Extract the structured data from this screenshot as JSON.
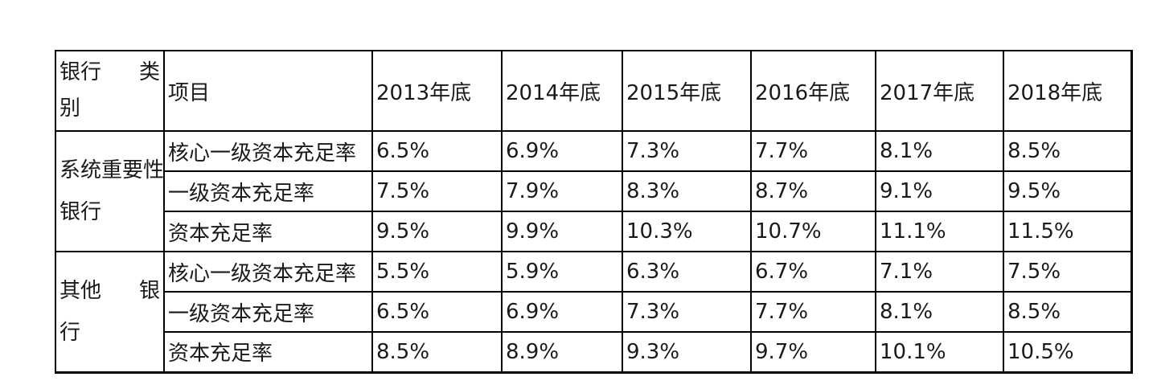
{
  "colors": {
    "background": "#ffffff",
    "text": "#1a1a1a",
    "border": "#000000"
  },
  "display": {
    "category_header": {
      "line1": "银行 类",
      "line2": "别"
    },
    "group_labels": [
      {
        "line1": "系统重要性",
        "line2": "银行"
      },
      {
        "line1": "其他 银",
        "line2": "行"
      }
    ]
  },
  "chart_data": {
    "type": "table",
    "columns": [
      "银行类别",
      "项目",
      "2013年底",
      "2014年底",
      "2015年底",
      "2016年底",
      "2017年底",
      "2018年底"
    ],
    "rows": [
      [
        "系统重要性银行",
        "核心一级资本充足率",
        "6.5%",
        "6.9%",
        "7.3%",
        "7.7%",
        "8.1%",
        "8.5%"
      ],
      [
        "系统重要性银行",
        "一级资本充足率",
        "7.5%",
        "7.9%",
        "8.3%",
        "8.7%",
        "9.1%",
        "9.5%"
      ],
      [
        "系统重要性银行",
        "资本充足率",
        "9.5%",
        "9.9%",
        "10.3%",
        "10.7%",
        "11.1%",
        "11.5%"
      ],
      [
        "其他银行",
        "核心一级资本充足率",
        "5.5%",
        "5.9%",
        "6.3%",
        "6.7%",
        "7.1%",
        "7.5%"
      ],
      [
        "其他银行",
        "一级资本充足率",
        "6.5%",
        "6.9%",
        "7.3%",
        "7.7%",
        "8.1%",
        "8.5%"
      ],
      [
        "其他银行",
        "资本充足率",
        "8.5%",
        "8.9%",
        "9.3%",
        "9.7%",
        "10.1%",
        "10.5%"
      ]
    ]
  }
}
